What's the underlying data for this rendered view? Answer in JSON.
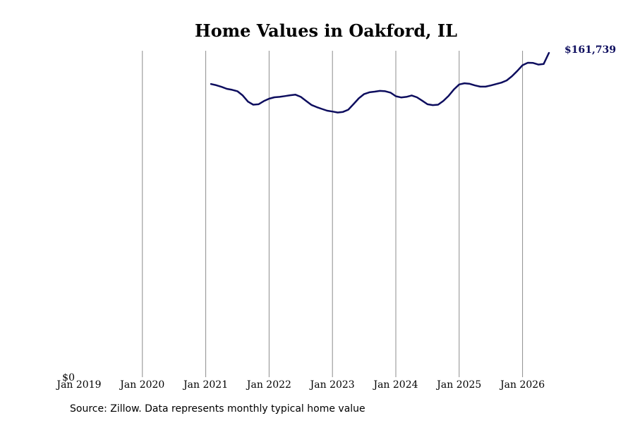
{
  "chart_data": {
    "type": "line",
    "title": "Home Values in Oakford, IL",
    "xlabel": "",
    "ylabel": "",
    "y_tick_label": "$0",
    "ylim": [
      0,
      161739
    ],
    "x_ticks": [
      "Jan 2019",
      "Jan 2020",
      "Jan 2021",
      "Jan 2022",
      "Jan 2023",
      "Jan 2024",
      "Jan 2025",
      "Jan 2026"
    ],
    "x_tick_years": [
      2019,
      2020,
      2021,
      2022,
      2023,
      2024,
      2025,
      2026
    ],
    "grid": "vertical",
    "series": [
      {
        "color": "#0d0d5e",
        "end_label": "$161,739",
        "points": [
          [
            "2021-02",
            146200
          ],
          [
            "2021-03",
            145600
          ],
          [
            "2021-04",
            144800
          ],
          [
            "2021-05",
            143800
          ],
          [
            "2021-06",
            143300
          ],
          [
            "2021-07",
            142600
          ],
          [
            "2021-08",
            140500
          ],
          [
            "2021-09",
            137400
          ],
          [
            "2021-10",
            135900
          ],
          [
            "2021-11",
            136100
          ],
          [
            "2021-12",
            137700
          ],
          [
            "2022-01",
            138900
          ],
          [
            "2022-02",
            139600
          ],
          [
            "2022-03",
            139800
          ],
          [
            "2022-04",
            140200
          ],
          [
            "2022-05",
            140600
          ],
          [
            "2022-06",
            140900
          ],
          [
            "2022-07",
            139800
          ],
          [
            "2022-08",
            137800
          ],
          [
            "2022-09",
            135800
          ],
          [
            "2022-10",
            134700
          ],
          [
            "2022-11",
            133800
          ],
          [
            "2022-12",
            132900
          ],
          [
            "2023-01",
            132500
          ],
          [
            "2023-02",
            132000
          ],
          [
            "2023-03",
            132300
          ],
          [
            "2023-04",
            133400
          ],
          [
            "2023-05",
            136200
          ],
          [
            "2023-06",
            139100
          ],
          [
            "2023-07",
            141200
          ],
          [
            "2023-08",
            142100
          ],
          [
            "2023-09",
            142400
          ],
          [
            "2023-10",
            142800
          ],
          [
            "2023-11",
            142600
          ],
          [
            "2023-12",
            141900
          ],
          [
            "2024-01",
            140100
          ],
          [
            "2024-02",
            139500
          ],
          [
            "2024-03",
            139800
          ],
          [
            "2024-04",
            140500
          ],
          [
            "2024-05",
            139600
          ],
          [
            "2024-06",
            137900
          ],
          [
            "2024-07",
            136100
          ],
          [
            "2024-08",
            135700
          ],
          [
            "2024-09",
            135900
          ],
          [
            "2024-10",
            137800
          ],
          [
            "2024-11",
            140300
          ],
          [
            "2024-12",
            143500
          ],
          [
            "2025-01",
            146000
          ],
          [
            "2025-02",
            146600
          ],
          [
            "2025-03",
            146300
          ],
          [
            "2025-04",
            145500
          ],
          [
            "2025-05",
            144900
          ],
          [
            "2025-06",
            144900
          ],
          [
            "2025-07",
            145500
          ],
          [
            "2025-08",
            146200
          ],
          [
            "2025-09",
            146900
          ],
          [
            "2025-10",
            148000
          ],
          [
            "2025-11",
            150100
          ],
          [
            "2025-12",
            152700
          ],
          [
            "2026-01",
            155600
          ],
          [
            "2026-02",
            156800
          ],
          [
            "2026-03",
            156700
          ],
          [
            "2026-04",
            155900
          ],
          [
            "2026-05",
            156200
          ],
          [
            "2026-06",
            161739
          ]
        ]
      }
    ]
  },
  "source_note": "Source: Zillow. Data represents monthly typical home value"
}
